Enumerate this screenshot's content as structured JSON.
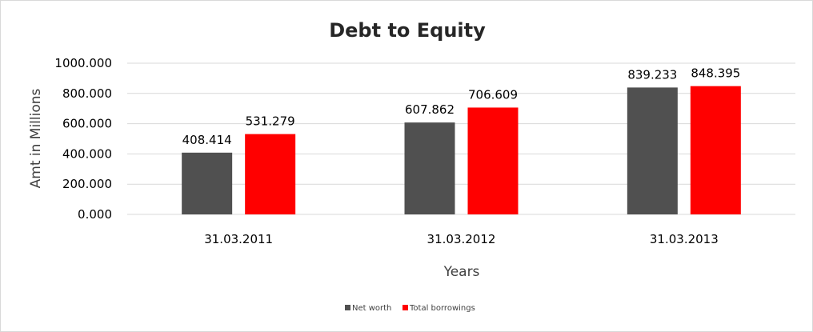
{
  "chart_data": {
    "type": "bar",
    "title": "Debt to Equity",
    "xlabel": "Years",
    "ylabel": "Amt in Millions",
    "categories": [
      "31.03.2011",
      "31.03.2012",
      "31.03.2013"
    ],
    "series": [
      {
        "name": "Net worth",
        "color": "#505050",
        "values": [
          408.414,
          607.862,
          839.233
        ],
        "labels": [
          "408.414",
          "607.862",
          "839.233"
        ]
      },
      {
        "name": "Total borrowings",
        "color": "#ff0000",
        "values": [
          531.279,
          706.609,
          848.395
        ],
        "labels": [
          "531.279",
          "706.609",
          "848.395"
        ]
      }
    ],
    "ylim": [
      0,
      1000
    ],
    "yticks": [
      0,
      200,
      400,
      600,
      800,
      1000
    ],
    "ytick_labels": [
      "0.000",
      "200.000",
      "400.000",
      "600.000",
      "800.000",
      "1000.000"
    ],
    "grid": true,
    "legend_position": "bottom"
  }
}
